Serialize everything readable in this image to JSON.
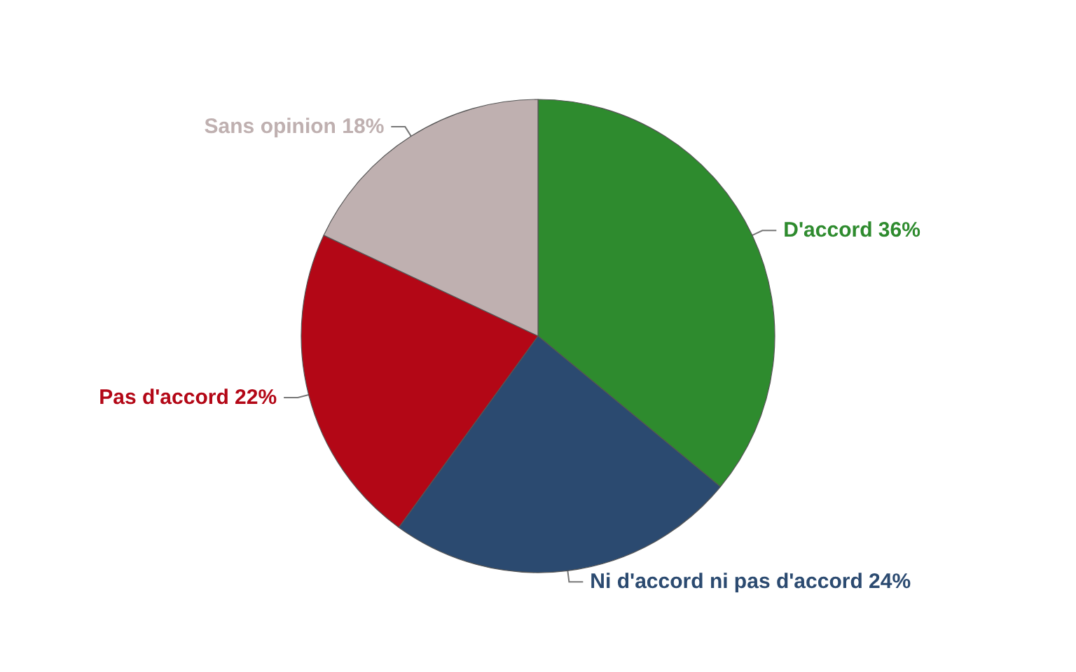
{
  "chart_data": {
    "type": "pie",
    "categories": [
      "D'accord",
      "Ni d'accord ni pas d'accord",
      "Pas d'accord",
      "Sans opinion"
    ],
    "values": [
      36,
      24,
      22,
      18
    ],
    "value_labels": [
      "36%",
      "24%",
      "22%",
      "18%"
    ],
    "colors": [
      "#2e8b2e",
      "#2b4a70",
      "#b30716",
      "#bfb0b0"
    ],
    "legend": false
  }
}
